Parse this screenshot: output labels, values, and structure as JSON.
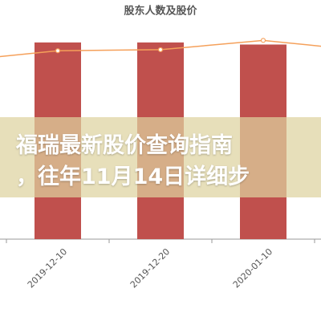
{
  "chart_data": {
    "type": "bar",
    "title": "股东人数及股价",
    "categories": [
      null,
      "2019-12-10",
      "2019-12-20",
      "2020-01-10",
      null
    ],
    "series": [
      {
        "type": "bar",
        "color": "#c0504d",
        "values": [
          null,
          95,
          95,
          94,
          null
        ]
      },
      {
        "type": "line",
        "color": "#f5a05a",
        "values": [
          86,
          91,
          91.5,
          96,
          91
        ]
      }
    ],
    "ylim": [
      0,
      100
    ]
  },
  "banner": {
    "lines": [
      "福瑞最新股价查询指南",
      "，往年11月14日详细步"
    ]
  }
}
